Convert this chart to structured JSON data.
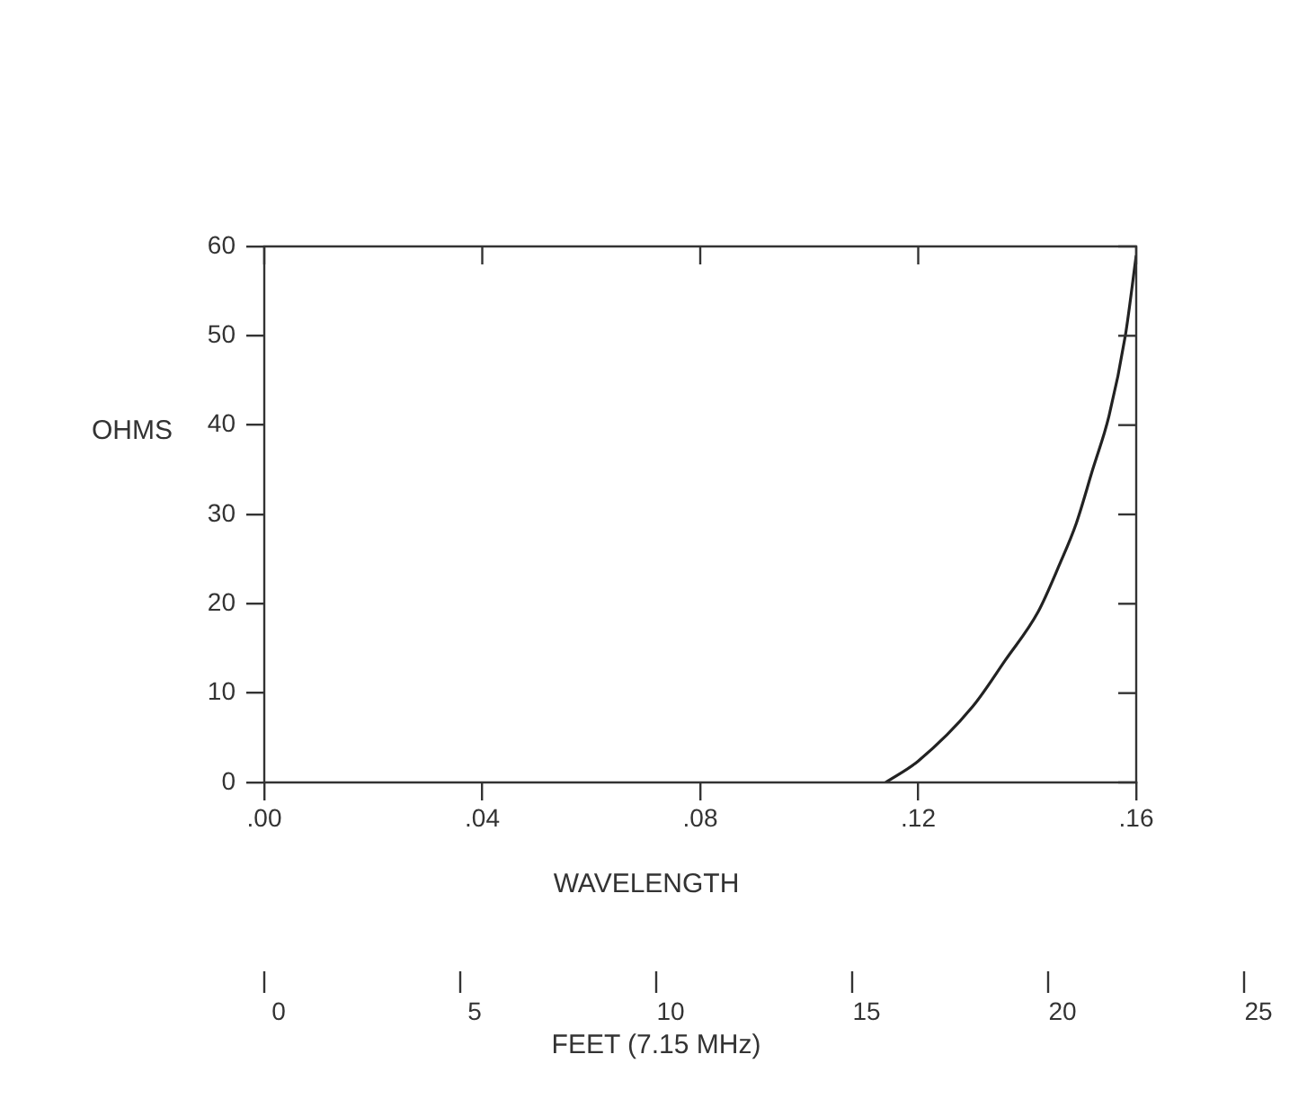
{
  "chart_data": {
    "type": "line",
    "xlabel": "WAVELENGTH",
    "ylabel": "OHMS",
    "x2label": "FEET (7.15 MHz)",
    "series": [
      {
        "color": "#222222",
        "x": [
          0.114,
          0.12,
          0.13,
          0.136,
          0.142,
          0.146,
          0.149,
          0.152,
          0.155,
          0.158,
          0.16
        ],
        "values": [
          0,
          2.4,
          8.5,
          13.7,
          19.1,
          24.5,
          29,
          35,
          41,
          50,
          59
        ]
      }
    ],
    "xlim": [
      0,
      0.16
    ],
    "xticks": [
      {
        "value": 0,
        "label": ".00"
      },
      {
        "value": 0.04,
        "label": ".04"
      },
      {
        "value": 0.08,
        "label": ".08"
      },
      {
        "value": 0.12,
        "label": ".12"
      },
      {
        "value": 0.16,
        "label": ".16"
      }
    ],
    "ylim": [
      0,
      60
    ],
    "yticks": [
      0,
      10,
      20,
      30,
      40,
      50,
      60
    ],
    "x2lim": [
      0,
      25
    ],
    "x2ticks": [
      0,
      5,
      10,
      15,
      20,
      25
    ],
    "grid": false,
    "legend": false,
    "marker": "none",
    "line_style": "solid"
  }
}
